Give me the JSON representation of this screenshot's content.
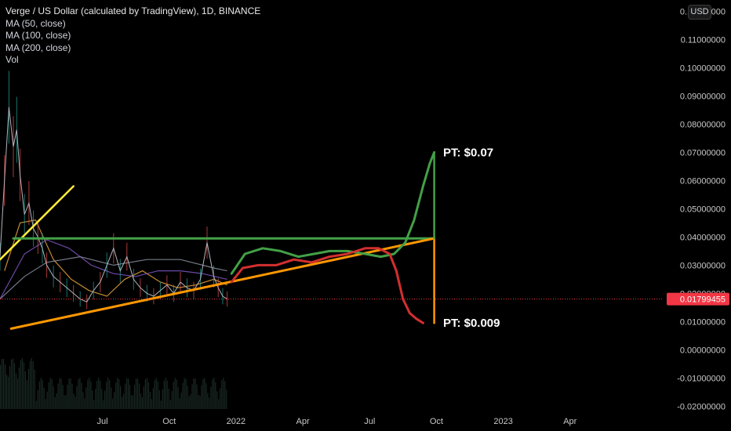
{
  "chart_data": {
    "type": "line",
    "title": "Verge / US Dollar (calculated by TradingView), 1D, BINANCE",
    "legend": [
      {
        "name": "Verge / US Dollar (calculated by TradingView), 1D, BINANCE"
      },
      {
        "name": "MA (50, close)"
      },
      {
        "name": "MA (100, close)"
      },
      {
        "name": "MA (200, close)"
      },
      {
        "name": "Vol"
      }
    ],
    "currency": "USD",
    "y_ticks": [
      "0.12000000",
      "0.11000000",
      "0.10000000",
      "0.09000000",
      "0.08000000",
      "0.07000000",
      "0.06000000",
      "0.05000000",
      "0.04000000",
      "0.03000000",
      "0.02000000",
      "0.01000000",
      "0.00000000",
      "-0.01000000",
      "-0.02000000"
    ],
    "y_tick_values": [
      0.12,
      0.11,
      0.1,
      0.09,
      0.08,
      0.07,
      0.06,
      0.05,
      0.04,
      0.03,
      0.02,
      0.01,
      0.0,
      -0.01,
      -0.02
    ],
    "ylim": [
      -0.021,
      0.124
    ],
    "x_ticks": [
      "Jul",
      "Oct",
      "2022",
      "Apr",
      "Jul",
      "Oct",
      "2023",
      "Apr"
    ],
    "x_tick_months": [
      6,
      9,
      12,
      15,
      18,
      21,
      24,
      27
    ],
    "xlim_months": [
      1.4,
      31.2
    ],
    "last_price": {
      "label": "0.01799455",
      "value": 0.01799455,
      "color": "#f23645"
    },
    "price_series": {
      "months": [
        1.4,
        1.6,
        1.8,
        2.0,
        2.15,
        2.3,
        2.5,
        2.7,
        2.9,
        3.1,
        3.3,
        3.5,
        3.8,
        4.1,
        4.4,
        4.7,
        5.0,
        5.3,
        5.6,
        5.9,
        6.2,
        6.5,
        6.8,
        7.1,
        7.4,
        7.7,
        8.0,
        8.3,
        8.6,
        8.9,
        9.2,
        9.5,
        9.8,
        10.1,
        10.4,
        10.7,
        11.0,
        11.2,
        11.4,
        11.6
      ],
      "close": [
        0.033,
        0.06,
        0.086,
        0.072,
        0.078,
        0.062,
        0.048,
        0.052,
        0.043,
        0.04,
        0.036,
        0.03,
        0.026,
        0.024,
        0.022,
        0.02,
        0.018,
        0.017,
        0.021,
        0.024,
        0.03,
        0.036,
        0.028,
        0.033,
        0.025,
        0.022,
        0.02,
        0.019,
        0.021,
        0.023,
        0.02,
        0.024,
        0.022,
        0.021,
        0.025,
        0.038,
        0.026,
        0.022,
        0.019,
        0.018
      ]
    },
    "ma_series": [
      {
        "color": "#e8a23a",
        "months": [
          1.6,
          2.3,
          3.0,
          3.8,
          4.6,
          5.4,
          6.2,
          7.0,
          7.8,
          8.6,
          9.4,
          10.2,
          11.0,
          11.6
        ],
        "values": [
          0.028,
          0.045,
          0.046,
          0.032,
          0.025,
          0.021,
          0.019,
          0.025,
          0.028,
          0.024,
          0.022,
          0.023,
          0.025,
          0.023
        ]
      },
      {
        "color": "#7e57c2",
        "months": [
          1.4,
          2.5,
          3.5,
          4.5,
          5.5,
          6.5,
          7.5,
          8.5,
          9.5,
          10.5,
          11.6
        ],
        "values": [
          0.018,
          0.034,
          0.039,
          0.036,
          0.03,
          0.027,
          0.026,
          0.028,
          0.028,
          0.027,
          0.025
        ]
      },
      {
        "color": "#8a8fa0",
        "months": [
          1.4,
          2.5,
          3.5,
          5.0,
          6.5,
          8.0,
          9.5,
          11.0,
          11.6
        ],
        "values": [
          0.018,
          0.026,
          0.031,
          0.033,
          0.03,
          0.032,
          0.032,
          0.029,
          0.028
        ]
      }
    ],
    "drawings": {
      "resistance_line": {
        "color": "#43a047",
        "from": [
          2.0,
          0.0395
        ],
        "to": [
          20.9,
          0.0395
        ]
      },
      "support_line": {
        "color": "#ff9800",
        "from": [
          1.9,
          0.0075
        ],
        "to": [
          20.9,
          0.0395
        ]
      },
      "early_trend_line": {
        "color": "#ffeb3b",
        "from": [
          1.4,
          0.032
        ],
        "to": [
          4.7,
          0.058
        ]
      },
      "target_range_line": {
        "color": "#ff9800",
        "from": [
          20.9,
          0.0395
        ],
        "to": [
          20.9,
          0.0095
        ]
      },
      "target_up_line": {
        "color": "#43a047",
        "from": [
          20.9,
          0.0395
        ],
        "to": [
          20.9,
          0.07
        ]
      },
      "bull_path": {
        "color": "#43a047",
        "months": [
          11.8,
          12.4,
          13.2,
          14.0,
          14.8,
          15.5,
          16.2,
          17.0,
          17.8,
          18.5,
          19.1,
          19.6,
          20.0,
          20.4,
          20.7,
          20.9
        ],
        "values": [
          0.027,
          0.034,
          0.036,
          0.035,
          0.033,
          0.034,
          0.035,
          0.035,
          0.034,
          0.033,
          0.034,
          0.038,
          0.046,
          0.058,
          0.066,
          0.07
        ]
      },
      "bear_path": {
        "color": "#d32f2f",
        "months": [
          11.8,
          12.3,
          13.0,
          13.8,
          14.6,
          15.4,
          16.2,
          17.0,
          17.8,
          18.4,
          18.9,
          19.2,
          19.5,
          19.8,
          20.1,
          20.4
        ],
        "values": [
          0.024,
          0.029,
          0.03,
          0.03,
          0.032,
          0.031,
          0.033,
          0.034,
          0.036,
          0.036,
          0.034,
          0.028,
          0.018,
          0.013,
          0.011,
          0.0095
        ]
      }
    },
    "annotations": [
      {
        "text": "PT: $0.07",
        "month": 21.3,
        "value": 0.07
      },
      {
        "text": "PT: $0.009",
        "month": 21.3,
        "value": 0.0095
      }
    ],
    "grid": false,
    "legend_position": "top-left"
  }
}
